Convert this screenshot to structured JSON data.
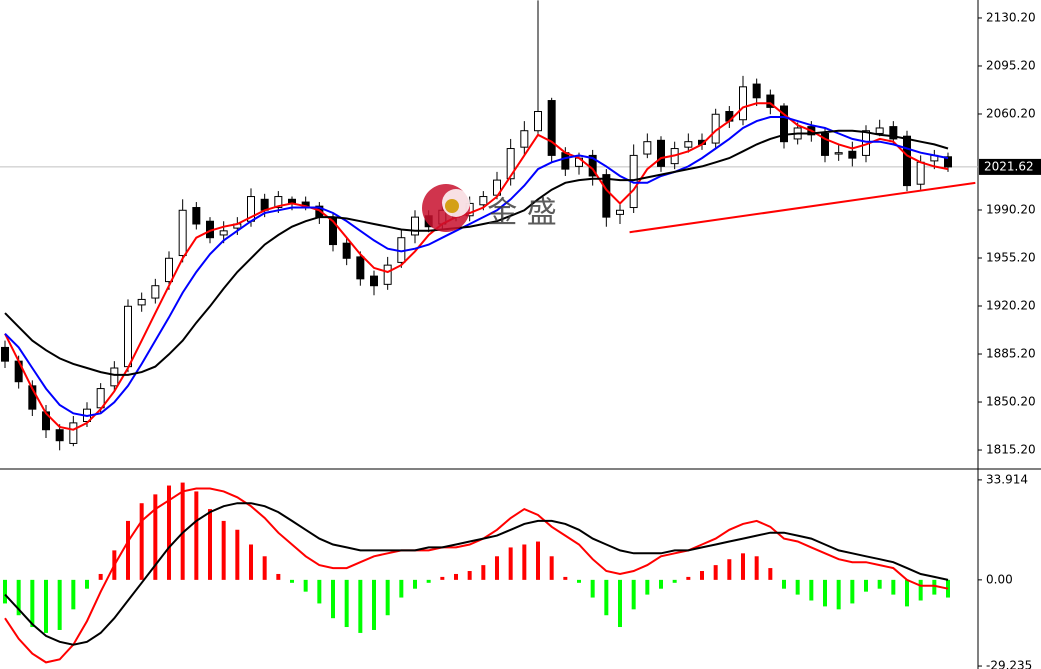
{
  "chart_data": [
    {
      "type": "candlestick",
      "open": [
        1890,
        1880,
        1862,
        1843,
        1830,
        1820,
        1836,
        1846,
        1862,
        1876,
        1921,
        1926,
        1938,
        1957,
        1992,
        1982,
        1972,
        1977,
        1982,
        1998,
        1992,
        1998,
        1996,
        1993,
        1985,
        1966,
        1956,
        1942,
        1936,
        1952,
        1972,
        1986,
        1980,
        1990,
        1986,
        1994,
        2001,
        2013,
        2036,
        2048,
        2070,
        2032,
        2022,
        2030,
        2016,
        1987,
        1992,
        2031,
        2041,
        2024,
        2036,
        2041,
        2039,
        2062,
        2056,
        2082,
        2074,
        2066,
        2042,
        2051,
        2046,
        2031,
        2033,
        2030,
        2046,
        2051,
        2044,
        2009,
        2026,
        2029
      ],
      "high": [
        1895,
        1884,
        1866,
        1848,
        1834,
        1840,
        1850,
        1864,
        1880,
        1925,
        1930,
        1940,
        1960,
        1998,
        1996,
        1985,
        1982,
        1985,
        2006,
        2002,
        2004,
        2000,
        2000,
        1996,
        1988,
        1970,
        1960,
        1946,
        1956,
        1976,
        1990,
        1990,
        1995,
        1994,
        2000,
        2004,
        2018,
        2042,
        2055,
        2143,
        2072,
        2036,
        2032,
        2034,
        2020,
        1996,
        2038,
        2046,
        2044,
        2040,
        2046,
        2046,
        2064,
        2066,
        2088,
        2086,
        2078,
        2068,
        2054,
        2055,
        2050,
        2038,
        2040,
        2052,
        2056,
        2055,
        2048,
        2030,
        2034,
        2032
      ],
      "low": [
        1875,
        1860,
        1840,
        1824,
        1815,
        1818,
        1832,
        1842,
        1858,
        1872,
        1916,
        1922,
        1932,
        1952,
        1976,
        1966,
        1966,
        1972,
        1978,
        1985,
        1988,
        1990,
        1990,
        1980,
        1960,
        1950,
        1935,
        1928,
        1932,
        1948,
        1966,
        1974,
        1976,
        1982,
        1982,
        1990,
        1998,
        2008,
        2030,
        2044,
        2025,
        2015,
        2016,
        2008,
        1978,
        1980,
        1988,
        2028,
        2018,
        2020,
        2032,
        2034,
        2035,
        2050,
        2052,
        2066,
        2060,
        2035,
        2038,
        2040,
        2025,
        2026,
        2022,
        2025,
        2044,
        2038,
        2004,
        2005,
        2020,
        2018
      ],
      "close": [
        1880,
        1865,
        1845,
        1830,
        1822,
        1835,
        1845,
        1860,
        1875,
        1920,
        1925,
        1935,
        1955,
        1990,
        1980,
        1970,
        1975,
        1980,
        2000,
        1990,
        2000,
        1995,
        1992,
        1985,
        1965,
        1955,
        1940,
        1935,
        1950,
        1970,
        1985,
        1978,
        1990,
        1985,
        1995,
        2000,
        2012,
        2035,
        2048,
        2062,
        2030,
        2020,
        2028,
        2015,
        1985,
        1990,
        2030,
        2040,
        2022,
        2035,
        2040,
        2038,
        2060,
        2055,
        2080,
        2072,
        2065,
        2040,
        2050,
        2045,
        2030,
        2032,
        2028,
        2048,
        2050,
        2042,
        2008,
        2025,
        2030,
        2021.62
      ],
      "up_color": "#ffffff",
      "down_color": "#000000",
      "series": [
        {
          "color": "#ff0000",
          "values": [
            1900,
            1880,
            1860,
            1842,
            1832,
            1830,
            1835,
            1845,
            1858,
            1875,
            1895,
            1915,
            1935,
            1955,
            1970,
            1975,
            1978,
            1980,
            1985,
            1990,
            1993,
            1995,
            1993,
            1990,
            1982,
            1970,
            1958,
            1948,
            1945,
            1950,
            1960,
            1972,
            1980,
            1985,
            1988,
            1992,
            2000,
            2015,
            2030,
            2045,
            2040,
            2032,
            2028,
            2020,
            2005,
            1995,
            2005,
            2020,
            2028,
            2030,
            2033,
            2038,
            2048,
            2055,
            2065,
            2068,
            2068,
            2060,
            2052,
            2048,
            2042,
            2038,
            2035,
            2038,
            2042,
            2040,
            2030,
            2025,
            2022,
            2020
          ]
        },
        {
          "color": "#0000ff",
          "values": [
            1900,
            1890,
            1875,
            1860,
            1848,
            1842,
            1840,
            1842,
            1850,
            1862,
            1878,
            1895,
            1912,
            1930,
            1945,
            1958,
            1968,
            1975,
            1982,
            1988,
            1990,
            1992,
            1992,
            1992,
            1988,
            1982,
            1975,
            1968,
            1962,
            1960,
            1962,
            1965,
            1970,
            1975,
            1980,
            1985,
            1990,
            1998,
            2008,
            2020,
            2025,
            2028,
            2030,
            2028,
            2022,
            2015,
            2010,
            2010,
            2015,
            2018,
            2022,
            2028,
            2035,
            2042,
            2050,
            2055,
            2058,
            2058,
            2055,
            2052,
            2050,
            2046,
            2042,
            2040,
            2040,
            2038,
            2035,
            2032,
            2030,
            2028
          ]
        },
        {
          "color": "#000000",
          "values": [
            1915,
            1905,
            1895,
            1888,
            1882,
            1878,
            1875,
            1872,
            1870,
            1870,
            1872,
            1876,
            1885,
            1895,
            1908,
            1920,
            1933,
            1945,
            1955,
            1965,
            1972,
            1978,
            1982,
            1985,
            1985,
            1984,
            1982,
            1980,
            1978,
            1976,
            1975,
            1975,
            1976,
            1977,
            1978,
            1980,
            1982,
            1986,
            1990,
            1998,
            2005,
            2010,
            2012,
            2013,
            2013,
            2012,
            2012,
            2014,
            2016,
            2018,
            2020,
            2022,
            2025,
            2028,
            2033,
            2038,
            2042,
            2045,
            2046,
            2046,
            2047,
            2048,
            2048,
            2047,
            2045,
            2044,
            2042,
            2040,
            2038,
            2035
          ]
        }
      ],
      "trendline": {
        "color": "#ff0000",
        "x": [
          45.7,
          71
        ],
        "y": [
          1974,
          2010
        ]
      },
      "ylim": [
        1802.1,
        2143.3
      ],
      "yticks": [
        {
          "value": 2130.2,
          "label": "2130.20"
        },
        {
          "value": 2095.2,
          "label": "2095.20"
        },
        {
          "value": 2060.2,
          "label": "2060.20"
        },
        {
          "value": 1990.2,
          "label": "1990.20"
        },
        {
          "value": 1955.2,
          "label": "1955.20"
        },
        {
          "value": 1920.2,
          "label": "1920.20"
        },
        {
          "value": 1885.2,
          "label": "1885.20"
        },
        {
          "value": 1850.2,
          "label": "1850.20"
        },
        {
          "value": 1815.2,
          "label": "1815.20"
        }
      ],
      "watermark": "金 盛"
    },
    {
      "type": "macd",
      "histogram": [
        -8,
        -12,
        -16,
        -18,
        -17,
        -10,
        -3,
        2,
        10,
        20,
        26,
        29,
        32,
        33,
        30,
        24,
        20,
        17,
        12,
        8,
        2,
        -1,
        -4,
        -8,
        -13,
        -16,
        -18,
        -17,
        -12,
        -6,
        -3,
        -1,
        1,
        2,
        3,
        5,
        8,
        11,
        12,
        13,
        8,
        1,
        -1,
        -6,
        -12,
        -16,
        -10,
        -5,
        -3,
        -1,
        1,
        3,
        5,
        7,
        9,
        8,
        4,
        -3,
        -5,
        -7,
        -9,
        -10,
        -8,
        -4,
        -3,
        -5,
        -9,
        -7,
        -5,
        -6
      ],
      "up_color": "#ff0000",
      "down_color": "#00ff00",
      "series": [
        {
          "color": "#ff0000",
          "values": [
            -13,
            -20,
            -25,
            -28,
            -27,
            -22,
            -14,
            -4,
            5,
            13,
            20,
            24,
            27,
            30,
            31,
            31,
            30,
            28,
            25,
            21,
            16,
            12,
            8,
            5,
            4,
            4,
            6,
            8,
            9,
            10,
            10,
            10,
            11,
            11,
            12,
            14,
            17,
            21,
            24,
            22,
            18,
            15,
            12,
            7,
            3,
            2,
            3,
            5,
            8,
            9,
            10,
            12,
            14,
            17,
            19,
            20,
            18,
            14,
            13,
            11,
            9,
            7,
            6,
            6,
            5,
            4,
            0,
            -2,
            -2,
            -3
          ]
        },
        {
          "color": "#000000",
          "values": [
            -5,
            -10,
            -15,
            -19,
            -21,
            -22,
            -21,
            -18,
            -13,
            -7,
            -1,
            5,
            11,
            16,
            20,
            23,
            25,
            26,
            26,
            25,
            23,
            20,
            17,
            14,
            12,
            11,
            10,
            10,
            10,
            10,
            10,
            11,
            11,
            12,
            13,
            14,
            15,
            17,
            19,
            20,
            20,
            19,
            17,
            14,
            12,
            10,
            9,
            9,
            9,
            10,
            10,
            11,
            12,
            13,
            14,
            15,
            16,
            16,
            15,
            14,
            12,
            10,
            9,
            8,
            7,
            6,
            4,
            2,
            1,
            0
          ]
        }
      ],
      "ylim": [
        -30.24,
        37.27
      ],
      "yticks": [
        {
          "value": 33.914,
          "label": "33.914"
        },
        {
          "value": 0,
          "label": "0.00"
        },
        {
          "value": -29.235,
          "label": "-29.235"
        }
      ]
    }
  ]
}
